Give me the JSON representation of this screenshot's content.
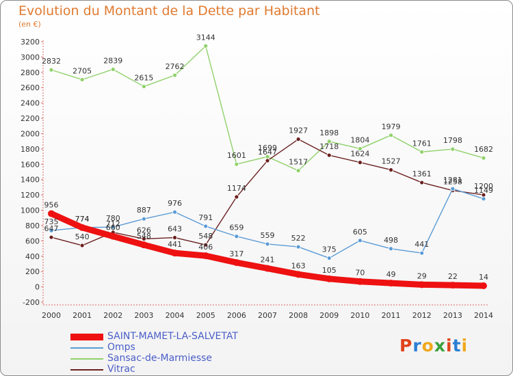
{
  "title": "Evolution du Montant de la Dette par Habitant",
  "subtitle": "(en €)",
  "logo": {
    "text": "Proxiti",
    "colors": [
      "#e0441b",
      "#2b7fd4",
      "#f0a81c",
      "#3aa13a",
      "#e0441b",
      "#2b7fd4",
      "#f0a81c"
    ]
  },
  "chart_data": {
    "type": "line",
    "title": "Evolution du Montant de la Dette par Habitant",
    "ylabel": "(en €)",
    "xlabel": "",
    "x": [
      "2000",
      "2001",
      "2002",
      "2003",
      "2004",
      "2005",
      "2006",
      "2007",
      "2008",
      "2009",
      "2010",
      "2011",
      "2012",
      "2013",
      "2014"
    ],
    "yticks": [
      -200,
      0,
      200,
      400,
      600,
      800,
      1000,
      1200,
      1400,
      1600,
      1800,
      2000,
      2200,
      2400,
      2600,
      2800,
      3000,
      3200
    ],
    "ylim": [
      -200,
      3200
    ],
    "grid": false,
    "legend": "bottom-left",
    "series": [
      {
        "name": "SAINT-MAMET-LA-SALVETAT",
        "color": "#ee1111",
        "values": [
          956,
          774,
          660,
          548,
          441,
          406,
          317,
          241,
          163,
          105,
          70,
          49,
          29,
          22,
          14
        ]
      },
      {
        "name": "Omps",
        "color": "#5b9bd5",
        "values": [
          735,
          774,
          780,
          887,
          976,
          791,
          659,
          559,
          522,
          375,
          605,
          498,
          441,
          1281,
          1149
        ]
      },
      {
        "name": "Sansac-de-Marmiesse",
        "color": "#8fd16a",
        "values": [
          2832,
          2705,
          2839,
          2615,
          2762,
          3144,
          1601,
          1699,
          1517,
          1898,
          1804,
          1979,
          1761,
          1798,
          1682
        ]
      },
      {
        "name": "Vitrac",
        "color": "#6b1f1f",
        "values": [
          647,
          540,
          712,
          626,
          643,
          548,
          1174,
          1647,
          1927,
          1718,
          1624,
          1527,
          1361,
          1258,
          1200
        ]
      }
    ]
  }
}
